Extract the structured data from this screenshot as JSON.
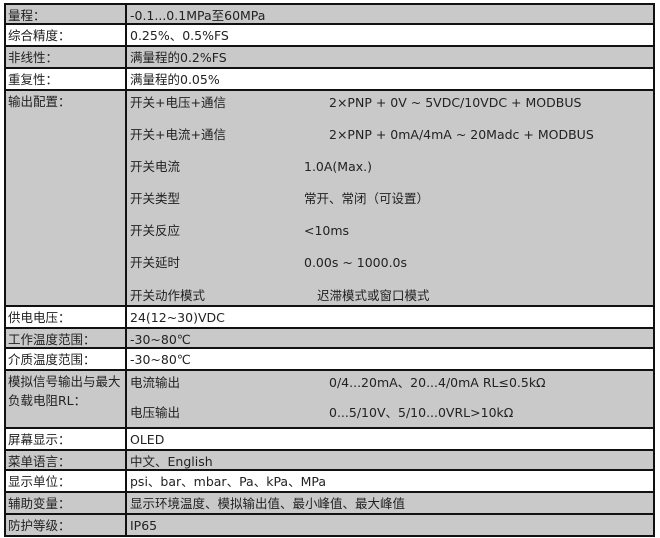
{
  "rows": [
    {
      "label": "量程：",
      "value": "-0.1...0.1MPa至60MPa",
      "bg": "gray"
    },
    {
      "label": "综合精度：",
      "value": "0.25%、0.5%FS",
      "bg": "white"
    },
    {
      "label": "非线性：",
      "value": "满量程的0.2%FS",
      "bg": "gray"
    },
    {
      "label": "重复性：",
      "value": "满量程的0.05%",
      "bg": "white"
    },
    {
      "label": "输出配置：",
      "bg": "gray",
      "sub": [
        {
          "label": "开关+电压+通信",
          "value": "2×PNP + 0V ~ 5VDC/10VDC + MODBUS"
        },
        {
          "label": "开关+电流+通信",
          "value": "2×PNP + 0mA/4mA ~ 20Madc + MODBUS"
        },
        {
          "label": "开关电流",
          "value": "1.0A(Max.)"
        },
        {
          "label": "开关类型",
          "value": "常开、常闭（可设置）"
        },
        {
          "label": "开关反应",
          "value": "<10ms"
        },
        {
          "label": "开关延时",
          "value": "0.00s ~ 1000.0s"
        },
        {
          "label": "开关动作模式",
          "value": "迟滞模式或窗口模式"
        }
      ]
    },
    {
      "label": "供电电压：",
      "value": "24(12~30)VDC",
      "bg": "white"
    },
    {
      "label": "工作温度范围：",
      "value": "-30~80℃",
      "bg": "gray"
    },
    {
      "label": "介质温度范围：",
      "value": "-30~80℃",
      "bg": "white"
    },
    {
      "label": "模拟信号输出与最大负载电阻RL：",
      "bg": "gray",
      "sub": [
        {
          "label": "电流输出",
          "value": "0/4...20mA、20...4/0mA  RL≤0.5kΩ"
        },
        {
          "label": "电压输出",
          "value": "0...5/10V、5/10...0VRL>10kΩ"
        }
      ]
    },
    {
      "label": "屏幕显示：",
      "value": "OLED",
      "bg": "white"
    },
    {
      "label": "菜单语言：",
      "value": "中文、English",
      "bg": "gray"
    },
    {
      "label": "显示单位：",
      "value": " psi、bar、mbar、Pa、kPa、MPa",
      "bg": "white"
    },
    {
      "label": "辅助变量：",
      "value": "显示环境温度、模拟输出值、最小峰值、最大峰值",
      "bg": "gray"
    },
    {
      "label": "防护等级：",
      "value": "IP65",
      "bg": "gray"
    }
  ]
}
